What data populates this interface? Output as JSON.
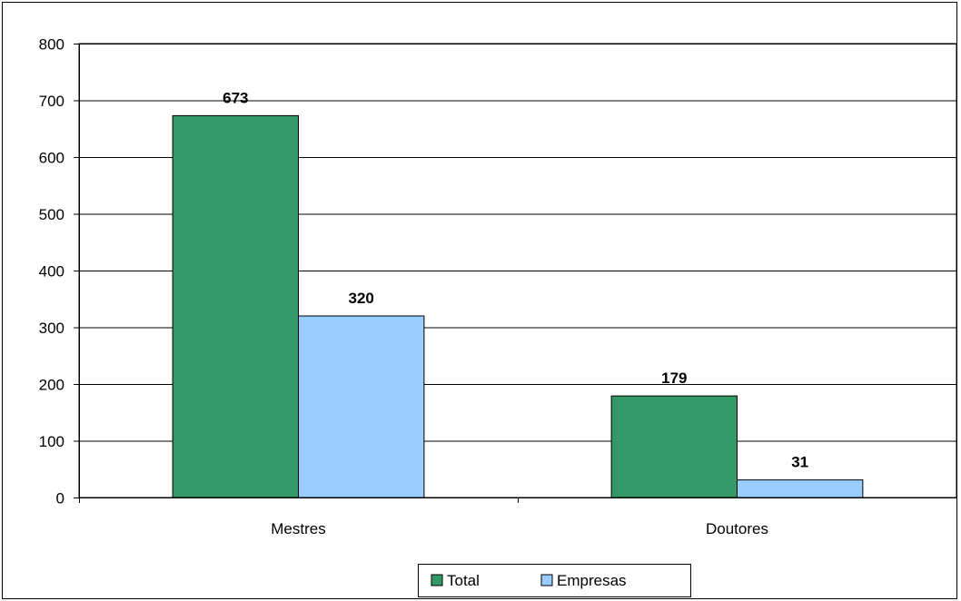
{
  "chart_data": {
    "type": "bar",
    "categories": [
      "Mestres",
      "Doutores"
    ],
    "series": [
      {
        "name": "Total",
        "values": [
          673,
          179
        ],
        "color": "#339966"
      },
      {
        "name": "Empresas",
        "values": [
          320,
          31
        ],
        "color": "#99CCFF"
      }
    ],
    "ylim": [
      0,
      800
    ],
    "yticks": [
      0,
      100,
      200,
      300,
      400,
      500,
      600,
      700,
      800
    ],
    "grid": true,
    "legend": "bottom",
    "data_labels": true
  }
}
